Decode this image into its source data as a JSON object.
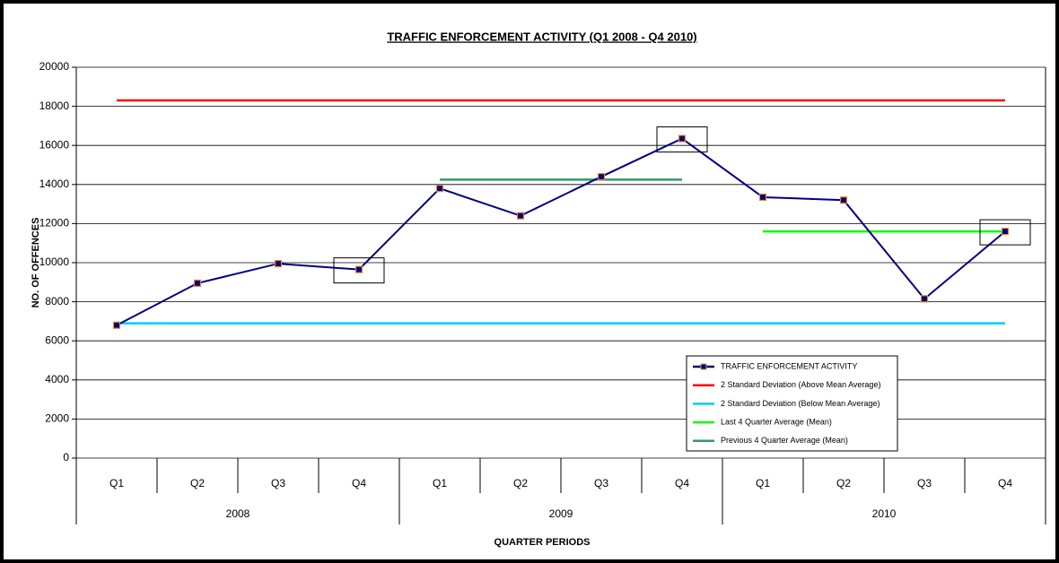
{
  "chart_data": {
    "type": "line",
    "title": "TRAFFIC ENFORCEMENT ACTIVITY (Q1 2008 - Q4 2010)",
    "x_label": "QUARTER PERIODS",
    "y_label": "NO. OF OFFENCES",
    "categories": [
      "Q1",
      "Q2",
      "Q3",
      "Q4",
      "Q1",
      "Q2",
      "Q3",
      "Q4",
      "Q1",
      "Q2",
      "Q3",
      "Q4"
    ],
    "category_groups": [
      {
        "name": "2008",
        "span": 4
      },
      {
        "name": "2009",
        "span": 4
      },
      {
        "name": "2010",
        "span": 4
      }
    ],
    "series": [
      {
        "name": "TRAFFIC ENFORCEMENT ACTIVITY",
        "color": "#000080",
        "marker": "square",
        "marker_color": "#e0902a",
        "values": [
          6800,
          8950,
          9950,
          9650,
          13800,
          12400,
          14400,
          16350,
          13350,
          13200,
          8150,
          11600
        ]
      },
      {
        "name": "2 Standard Deviation (Above Mean Average)",
        "color": "#ff0000",
        "values": [
          18300,
          18300,
          18300,
          18300,
          18300,
          18300,
          18300,
          18300,
          18300,
          18300,
          18300,
          18300
        ]
      },
      {
        "name": "2 Standard Deviation (Below Mean Average)",
        "color": "#00ccff",
        "values": [
          6900,
          6900,
          6900,
          6900,
          6900,
          6900,
          6900,
          6900,
          6900,
          6900,
          6900,
          6900
        ]
      },
      {
        "name": "Last 4 Quarter Average (Mean)",
        "color": "#00ff00",
        "values": [
          null,
          null,
          null,
          null,
          null,
          null,
          null,
          null,
          11600,
          11600,
          11600,
          11600
        ]
      },
      {
        "name": "Previous 4 Quarter Average (Mean)",
        "color": "#339966",
        "values": [
          null,
          null,
          null,
          null,
          14250,
          14250,
          14250,
          14250,
          null,
          null,
          null,
          null
        ]
      }
    ],
    "highlighted": [
      3,
      7,
      11
    ],
    "ylim": [
      0,
      20000
    ],
    "yticks": [
      0,
      2000,
      4000,
      6000,
      8000,
      10000,
      12000,
      14000,
      16000,
      18000,
      20000
    ],
    "grid": true,
    "legend": "bottom-right"
  }
}
